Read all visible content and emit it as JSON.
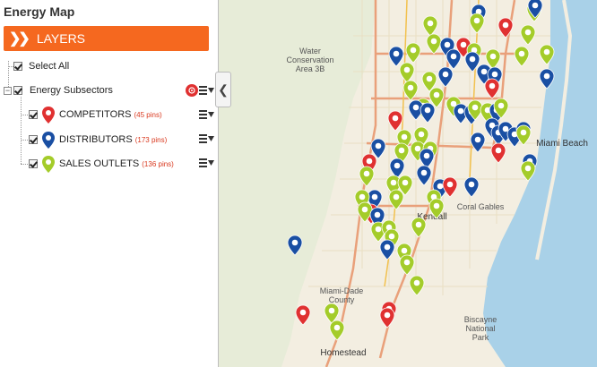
{
  "app": {
    "title": "Energy Map"
  },
  "layers_bar": {
    "label": "LAYERS"
  },
  "tree": {
    "select_all": "Select All",
    "group": "Energy Subsectors",
    "items": [
      {
        "label": "COMPETITORS",
        "count": "(45 pins)",
        "color": "#e03131"
      },
      {
        "label": "DISTRIBUTORS",
        "count": "(173 pins)",
        "color": "#1a4fa3"
      },
      {
        "label": "SALES OUTLETS",
        "count": "(136 pins)",
        "color": "#a4cc2a"
      }
    ]
  },
  "map": {
    "labels": {
      "wca": "Water\nConservation\nArea 3B",
      "miami_beach": "Miami Beach",
      "coral_gables": "Coral Gables",
      "kendall": "Kendall",
      "miami_dade": "Miami-Dade\nCounty",
      "biscayne": "Biscayne\nNational\nPark",
      "homestead": "Homestead"
    }
  }
}
